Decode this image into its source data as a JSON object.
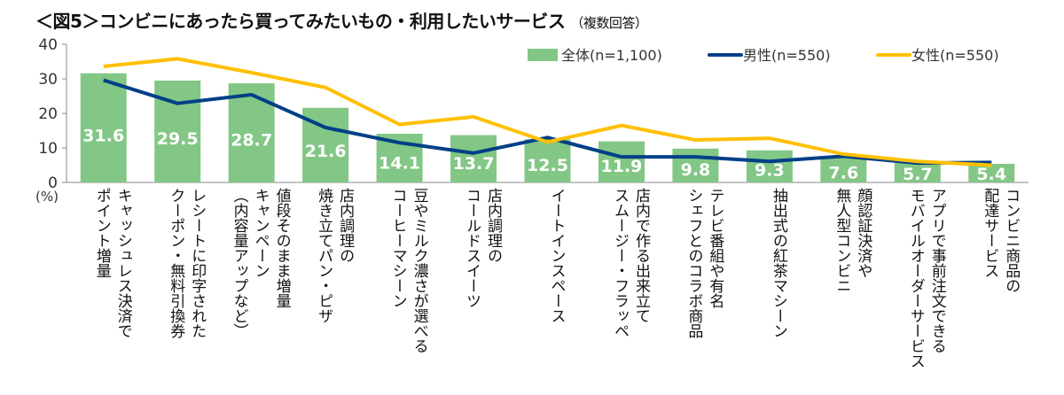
{
  "chart_data": {
    "type": "bar",
    "title": "＜図5＞コンビニにあったら買ってみたいもの・利用したいサービス",
    "subtitle": "（複数回答）",
    "ylabel": "(%)",
    "ylim": [
      0,
      40
    ],
    "yticks": [
      0,
      10,
      20,
      30,
      40
    ],
    "legend_position": "top-right",
    "categories": [
      "キャッシュレス決済で\nポイント増量",
      "レシートに印字された\nクーポン・無料引換券",
      "値段そのまま増量\nキャンペーン\n（内容量アップなど）",
      "店内調理の\n焼き立てパン・ピザ",
      "豆やミルク濃さが選べる\nコーヒーマシーン",
      "店内調理の\nコールドスイーツ",
      "イートインスペース",
      "店内で作る出来立て\nスムージー・フラッペ",
      "テレビ番組や有名\nシェフとのコラボ商品",
      "抽出式の紅茶マシーン",
      "顔認証決済や\n無人型コンビニ",
      "アプリで事前注文できる\nモバイルオーダーサービス",
      "コンビニ商品の\n配達サービス"
    ],
    "series": [
      {
        "name": "全体(n=1,100)",
        "kind": "bar",
        "color": "#82c785",
        "values": [
          31.6,
          29.5,
          28.7,
          21.6,
          14.1,
          13.7,
          12.5,
          11.9,
          9.8,
          9.3,
          7.6,
          5.7,
          5.4
        ]
      },
      {
        "name": "男性(n=550)",
        "kind": "line",
        "color": "#003f87",
        "values": [
          29.6,
          22.9,
          25.4,
          15.9,
          11.5,
          8.5,
          13.0,
          7.4,
          7.4,
          6.1,
          7.6,
          5.6,
          5.8
        ]
      },
      {
        "name": "女性(n=550)",
        "kind": "line",
        "color": "#ffc000",
        "values": [
          33.6,
          35.8,
          31.8,
          27.5,
          16.8,
          19.0,
          11.7,
          16.5,
          12.3,
          12.8,
          8.2,
          6.1,
          5.0
        ]
      }
    ]
  }
}
